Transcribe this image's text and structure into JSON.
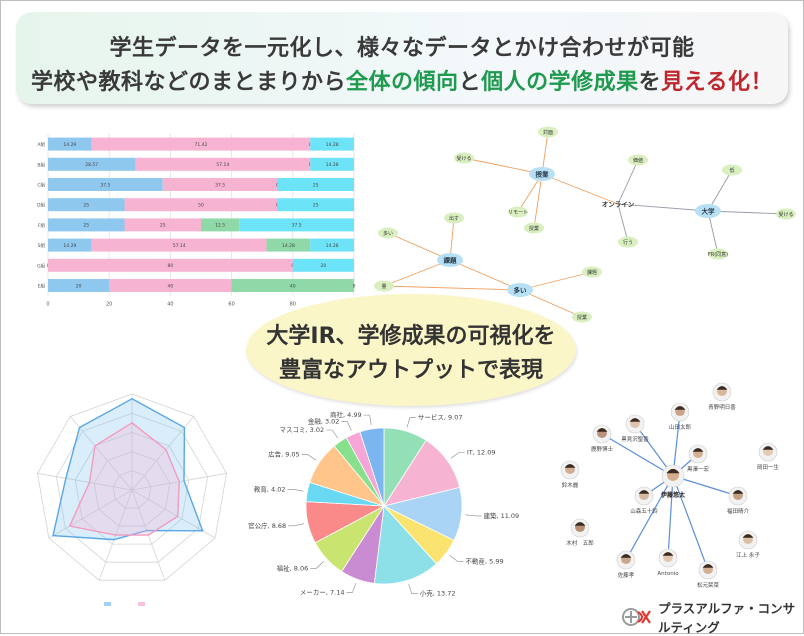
{
  "banner": {
    "line1": "学生データを一元化し、様々なデータとかけ合わせが可能",
    "line2_a": "学校や教科などのまとまりから",
    "line2_b": "全体の傾向",
    "line2_c": "と",
    "line2_d": "個人の学修成果",
    "line2_e": "を",
    "line2_f": "見える化！"
  },
  "center_bubble": {
    "line1": "大学IR、学修成果の可視化を",
    "line2": "豊富なアウトプットで表現"
  },
  "logo": {
    "text": "プラスアルファ・コンサルティング"
  },
  "colors": {
    "blue": "#8ec8ef",
    "pink": "#f7b3d2",
    "green": "#8fd9a8",
    "cyan": "#6de3f8",
    "accent_green": "#1f9a4f",
    "accent_red": "#c0262d"
  },
  "chart_data": [
    {
      "type": "bar",
      "orientation": "horizontal-stacked",
      "categories": [
        "A組",
        "B組",
        "C組",
        "D組",
        "F組",
        "S組",
        "G組",
        "E組"
      ],
      "series": [
        {
          "color": "#8ec8ef",
          "values": [
            14.29,
            28.57,
            37.5,
            25,
            25,
            14.29,
            0,
            20
          ]
        },
        {
          "color": "#f7b3d2",
          "values": [
            71.42,
            57.14,
            37.5,
            50,
            25,
            57.14,
            80,
            40
          ]
        },
        {
          "color": "#8fd9a8",
          "values": [
            0,
            0,
            0,
            0,
            12.5,
            14.28,
            0,
            40
          ]
        },
        {
          "color": "#6de3f8",
          "values": [
            14.28,
            14.28,
            25,
            25,
            37.5,
            14.28,
            20,
            0
          ]
        }
      ],
      "xticks": [
        0,
        20,
        40,
        60,
        80,
        100
      ],
      "xlim": [
        0,
        100
      ]
    },
    {
      "type": "network",
      "nodes": [
        {
          "id": "jugyo",
          "label": "授業",
          "kind": "main",
          "color": "#b8e0f5"
        },
        {
          "id": "online",
          "label": "オンライン",
          "kind": "text"
        },
        {
          "id": "daigaku",
          "label": "大学",
          "kind": "main",
          "color": "#b8e0f5"
        },
        {
          "id": "kadai",
          "label": "課題",
          "kind": "main",
          "color": "#b8e0f5"
        },
        {
          "id": "ooi",
          "label": "多い",
          "kind": "main",
          "color": "#b8e0f5"
        },
        {
          "id": "taimen",
          "label": "対面",
          "kind": "leaf",
          "color": "#d9efbf"
        },
        {
          "id": "ukeru1",
          "label": "受ける",
          "kind": "leaf",
          "color": "#d9efbf"
        },
        {
          "id": "remote",
          "label": "リモート",
          "kind": "leaf",
          "color": "#d9efbf"
        },
        {
          "id": "jugyo2",
          "label": "授業",
          "kind": "leaf",
          "color": "#d9efbf"
        },
        {
          "id": "keiki",
          "label": "価値",
          "kind": "leaf",
          "color": "#d9efbf"
        },
        {
          "id": "kou",
          "label": "行う",
          "kind": "leaf",
          "color": "#d9efbf"
        },
        {
          "id": "iku",
          "label": "低",
          "kind": "leaf",
          "color": "#d9efbf"
        },
        {
          "id": "ukeru2",
          "label": "受ける",
          "kind": "leaf",
          "color": "#d9efbf"
        },
        {
          "id": "fr",
          "label": "FR(同意)",
          "kind": "leaf",
          "color": "#d9efbf"
        },
        {
          "id": "dasu",
          "label": "出す",
          "kind": "leaf",
          "color": "#d9efbf"
        },
        {
          "id": "ooi2",
          "label": "多い",
          "kind": "leaf",
          "color": "#d9efbf"
        },
        {
          "id": "ryo",
          "label": "量",
          "kind": "leaf",
          "color": "#d9efbf"
        },
        {
          "id": "kadai2",
          "label": "課題",
          "kind": "leaf",
          "color": "#d9efbf"
        },
        {
          "id": "jugyo3",
          "label": "授業",
          "kind": "leaf",
          "color": "#d9efbf"
        }
      ],
      "edges": [
        [
          "jugyo",
          "taimen"
        ],
        [
          "jugyo",
          "ukeru1"
        ],
        [
          "jugyo",
          "remote"
        ],
        [
          "jugyo",
          "jugyo2"
        ],
        [
          "jugyo",
          "online"
        ],
        [
          "online",
          "keiki"
        ],
        [
          "online",
          "kou"
        ],
        [
          "online",
          "daigaku"
        ],
        [
          "daigaku",
          "iku"
        ],
        [
          "daigaku",
          "ukeru2"
        ],
        [
          "daigaku",
          "fr"
        ],
        [
          "kadai",
          "dasu"
        ],
        [
          "kadai",
          "ooi2"
        ],
        [
          "kadai",
          "ryo"
        ],
        [
          "kadai",
          "ooi"
        ],
        [
          "ooi",
          "kadai2"
        ],
        [
          "ooi",
          "jugyo3"
        ],
        [
          "ooi",
          "ryo"
        ]
      ]
    },
    {
      "type": "radar",
      "axes": [
        "",
        "",
        "",
        "",
        "",
        "",
        "",
        "",
        ""
      ],
      "series": [
        {
          "color": "#5aa7e6",
          "fill": "rgba(122,190,240,0.28)",
          "values": [
            0.95,
            0.85,
            0.55,
            0.85,
            0.45,
            0.55,
            0.95,
            0.7,
            0.85
          ]
        },
        {
          "color": "#f29bc0",
          "fill": "rgba(247,179,210,0.30)",
          "values": [
            0.7,
            0.55,
            0.5,
            0.55,
            0.5,
            0.5,
            0.75,
            0.45,
            0.6
          ]
        }
      ],
      "rings": 5
    },
    {
      "type": "pie",
      "slices": [
        {
          "label": "サービス",
          "value": 9.07,
          "color": "#93dfb6"
        },
        {
          "label": "IT",
          "value": 12.09,
          "color": "#f7b3d2"
        },
        {
          "label": "建築",
          "value": 11.09,
          "color": "#a9d4f5"
        },
        {
          "label": "不動産",
          "value": 5.99,
          "color": "#fbe36f"
        },
        {
          "label": "小売",
          "value": 13.72,
          "color": "#8ee0e8"
        },
        {
          "label": "メーカー",
          "value": 7.14,
          "color": "#c98bd1"
        },
        {
          "label": "福祉",
          "value": 8.06,
          "color": "#c9e56f"
        },
        {
          "label": "官公庁",
          "value": 8.68,
          "color": "#fa8a8a"
        },
        {
          "label": "教育",
          "value": 4.02,
          "color": "#68d8f3"
        },
        {
          "label": "広告",
          "value": 9.05,
          "color": "#ffc58a"
        },
        {
          "label": "マスコミ",
          "value": 3.02,
          "color": "#88e08c"
        },
        {
          "label": "金融",
          "value": 3.02,
          "color": "#f5a5d6"
        },
        {
          "label": "商社",
          "value": 4.99,
          "color": "#7bb6f1"
        }
      ]
    },
    {
      "type": "network",
      "center": {
        "label": "伊藤悠太"
      },
      "people": [
        {
          "label": "青野明日香",
          "linked": false
        },
        {
          "label": "山田太郎",
          "linked": true
        },
        {
          "label": "黒見沢聖香",
          "linked": true
        },
        {
          "label": "鹿野博士",
          "linked": true
        },
        {
          "label": "黒澤一宏",
          "linked": true
        },
        {
          "label": "岡田一生",
          "linked": false
        },
        {
          "label": "鈴木麗",
          "linked": false
        },
        {
          "label": "山森五十鈴",
          "linked": true
        },
        {
          "label": "福田晴介",
          "linked": true
        },
        {
          "label": "木村　五郎",
          "linked": false
        },
        {
          "label": "江上 永子",
          "linked": false
        },
        {
          "label": "佐藤孝",
          "linked": true
        },
        {
          "label": "Antonio",
          "linked": true
        },
        {
          "label": "松元栞菜",
          "linked": true
        }
      ]
    }
  ]
}
